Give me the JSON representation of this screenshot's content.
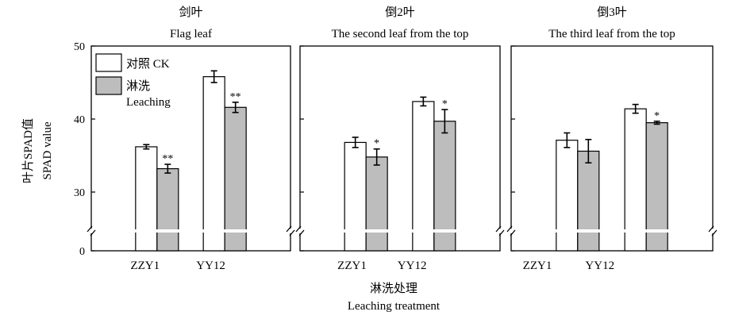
{
  "chart_data": {
    "type": "bar",
    "ylabel_cn": "叶片SPAD值",
    "ylabel_en": "SPAD value",
    "xlabel_cn": "淋洗处理",
    "xlabel_en": "Leaching treatment",
    "ylim": [
      0,
      50
    ],
    "axis_break": true,
    "yticks": [
      "0",
      "30",
      "40",
      "50"
    ],
    "categories": [
      "ZZY1",
      "YY12"
    ],
    "legend": {
      "position": "top-left",
      "entries": [
        {
          "label": "对照  CK",
          "color": "#ffffff"
        },
        {
          "label": "淋洗",
          "label2": "Leaching",
          "color": "#bdbdbd"
        }
      ]
    },
    "panels": [
      {
        "title_cn": "剑叶",
        "title_en": "Flag leaf",
        "series": [
          {
            "name": "CK",
            "values": [
              36.2,
              45.8
            ],
            "errors": [
              0.3,
              0.8
            ]
          },
          {
            "name": "Leaching",
            "values": [
              33.2,
              41.6
            ],
            "errors": [
              0.6,
              0.7
            ]
          }
        ],
        "significance": [
          "**",
          "**"
        ]
      },
      {
        "title_cn": "倒2叶",
        "title_en": "The second leaf from the top",
        "series": [
          {
            "name": "CK",
            "values": [
              36.8,
              42.4
            ],
            "errors": [
              0.7,
              0.6
            ]
          },
          {
            "name": "Leaching",
            "values": [
              34.8,
              39.7
            ],
            "errors": [
              1.1,
              1.6
            ]
          }
        ],
        "significance": [
          "*",
          "*"
        ]
      },
      {
        "title_cn": "倒3叶",
        "title_en": "The third leaf from the top",
        "series": [
          {
            "name": "CK",
            "values": [
              37.1,
              41.4
            ],
            "errors": [
              1.0,
              0.6
            ]
          },
          {
            "name": "Leaching",
            "values": [
              35.6,
              39.5
            ],
            "errors": [
              1.6,
              0.2
            ]
          }
        ],
        "significance": [
          "",
          "*"
        ]
      }
    ]
  }
}
